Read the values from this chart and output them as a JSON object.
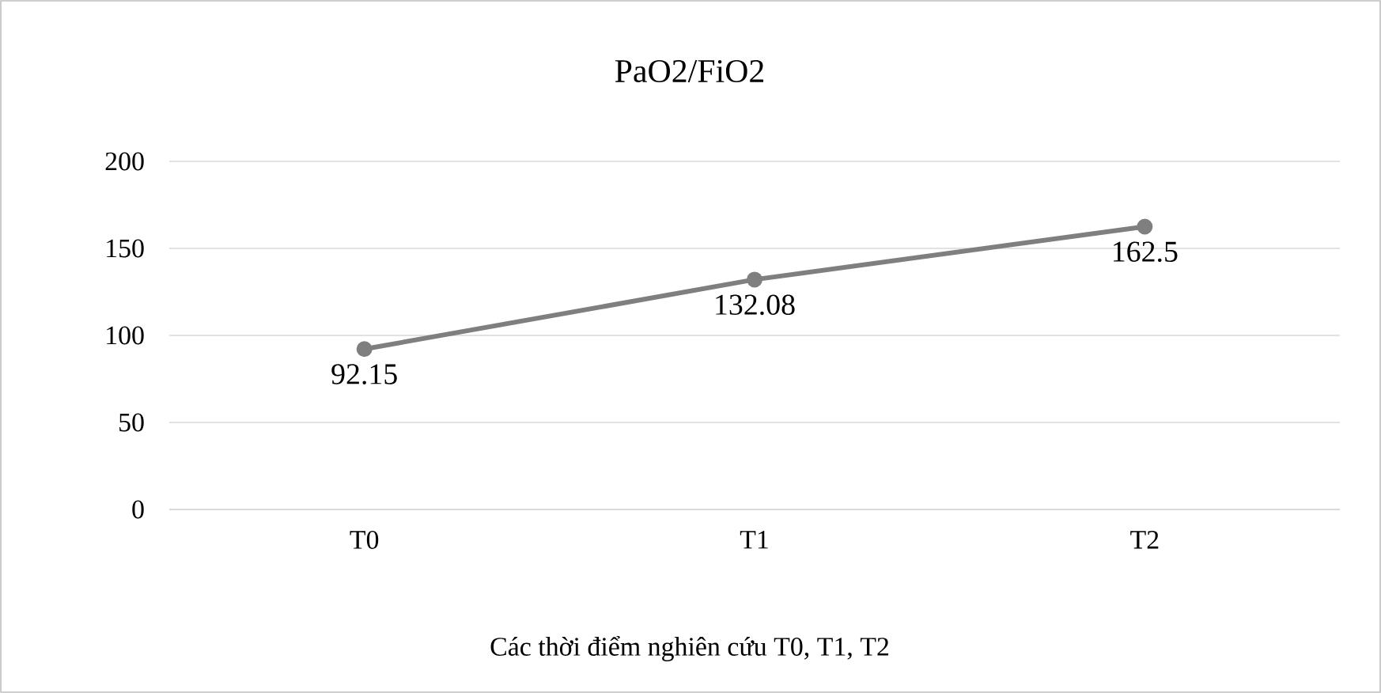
{
  "chart_data": {
    "type": "line",
    "title": "PaO2/FiO2",
    "xlabel": "Các thời điểm nghiên cứu T0, T1, T2",
    "categories": [
      "T0",
      "T1",
      "T2"
    ],
    "series": [
      {
        "color": "#7f7f7f",
        "values": [
          92.15,
          132.08,
          162.5
        ]
      }
    ],
    "ylim": [
      0,
      200
    ],
    "yticks": [
      0,
      50,
      100,
      150,
      200
    ],
    "grid": "y",
    "marker": "circle",
    "line_style": "solid",
    "data_labels": true
  }
}
